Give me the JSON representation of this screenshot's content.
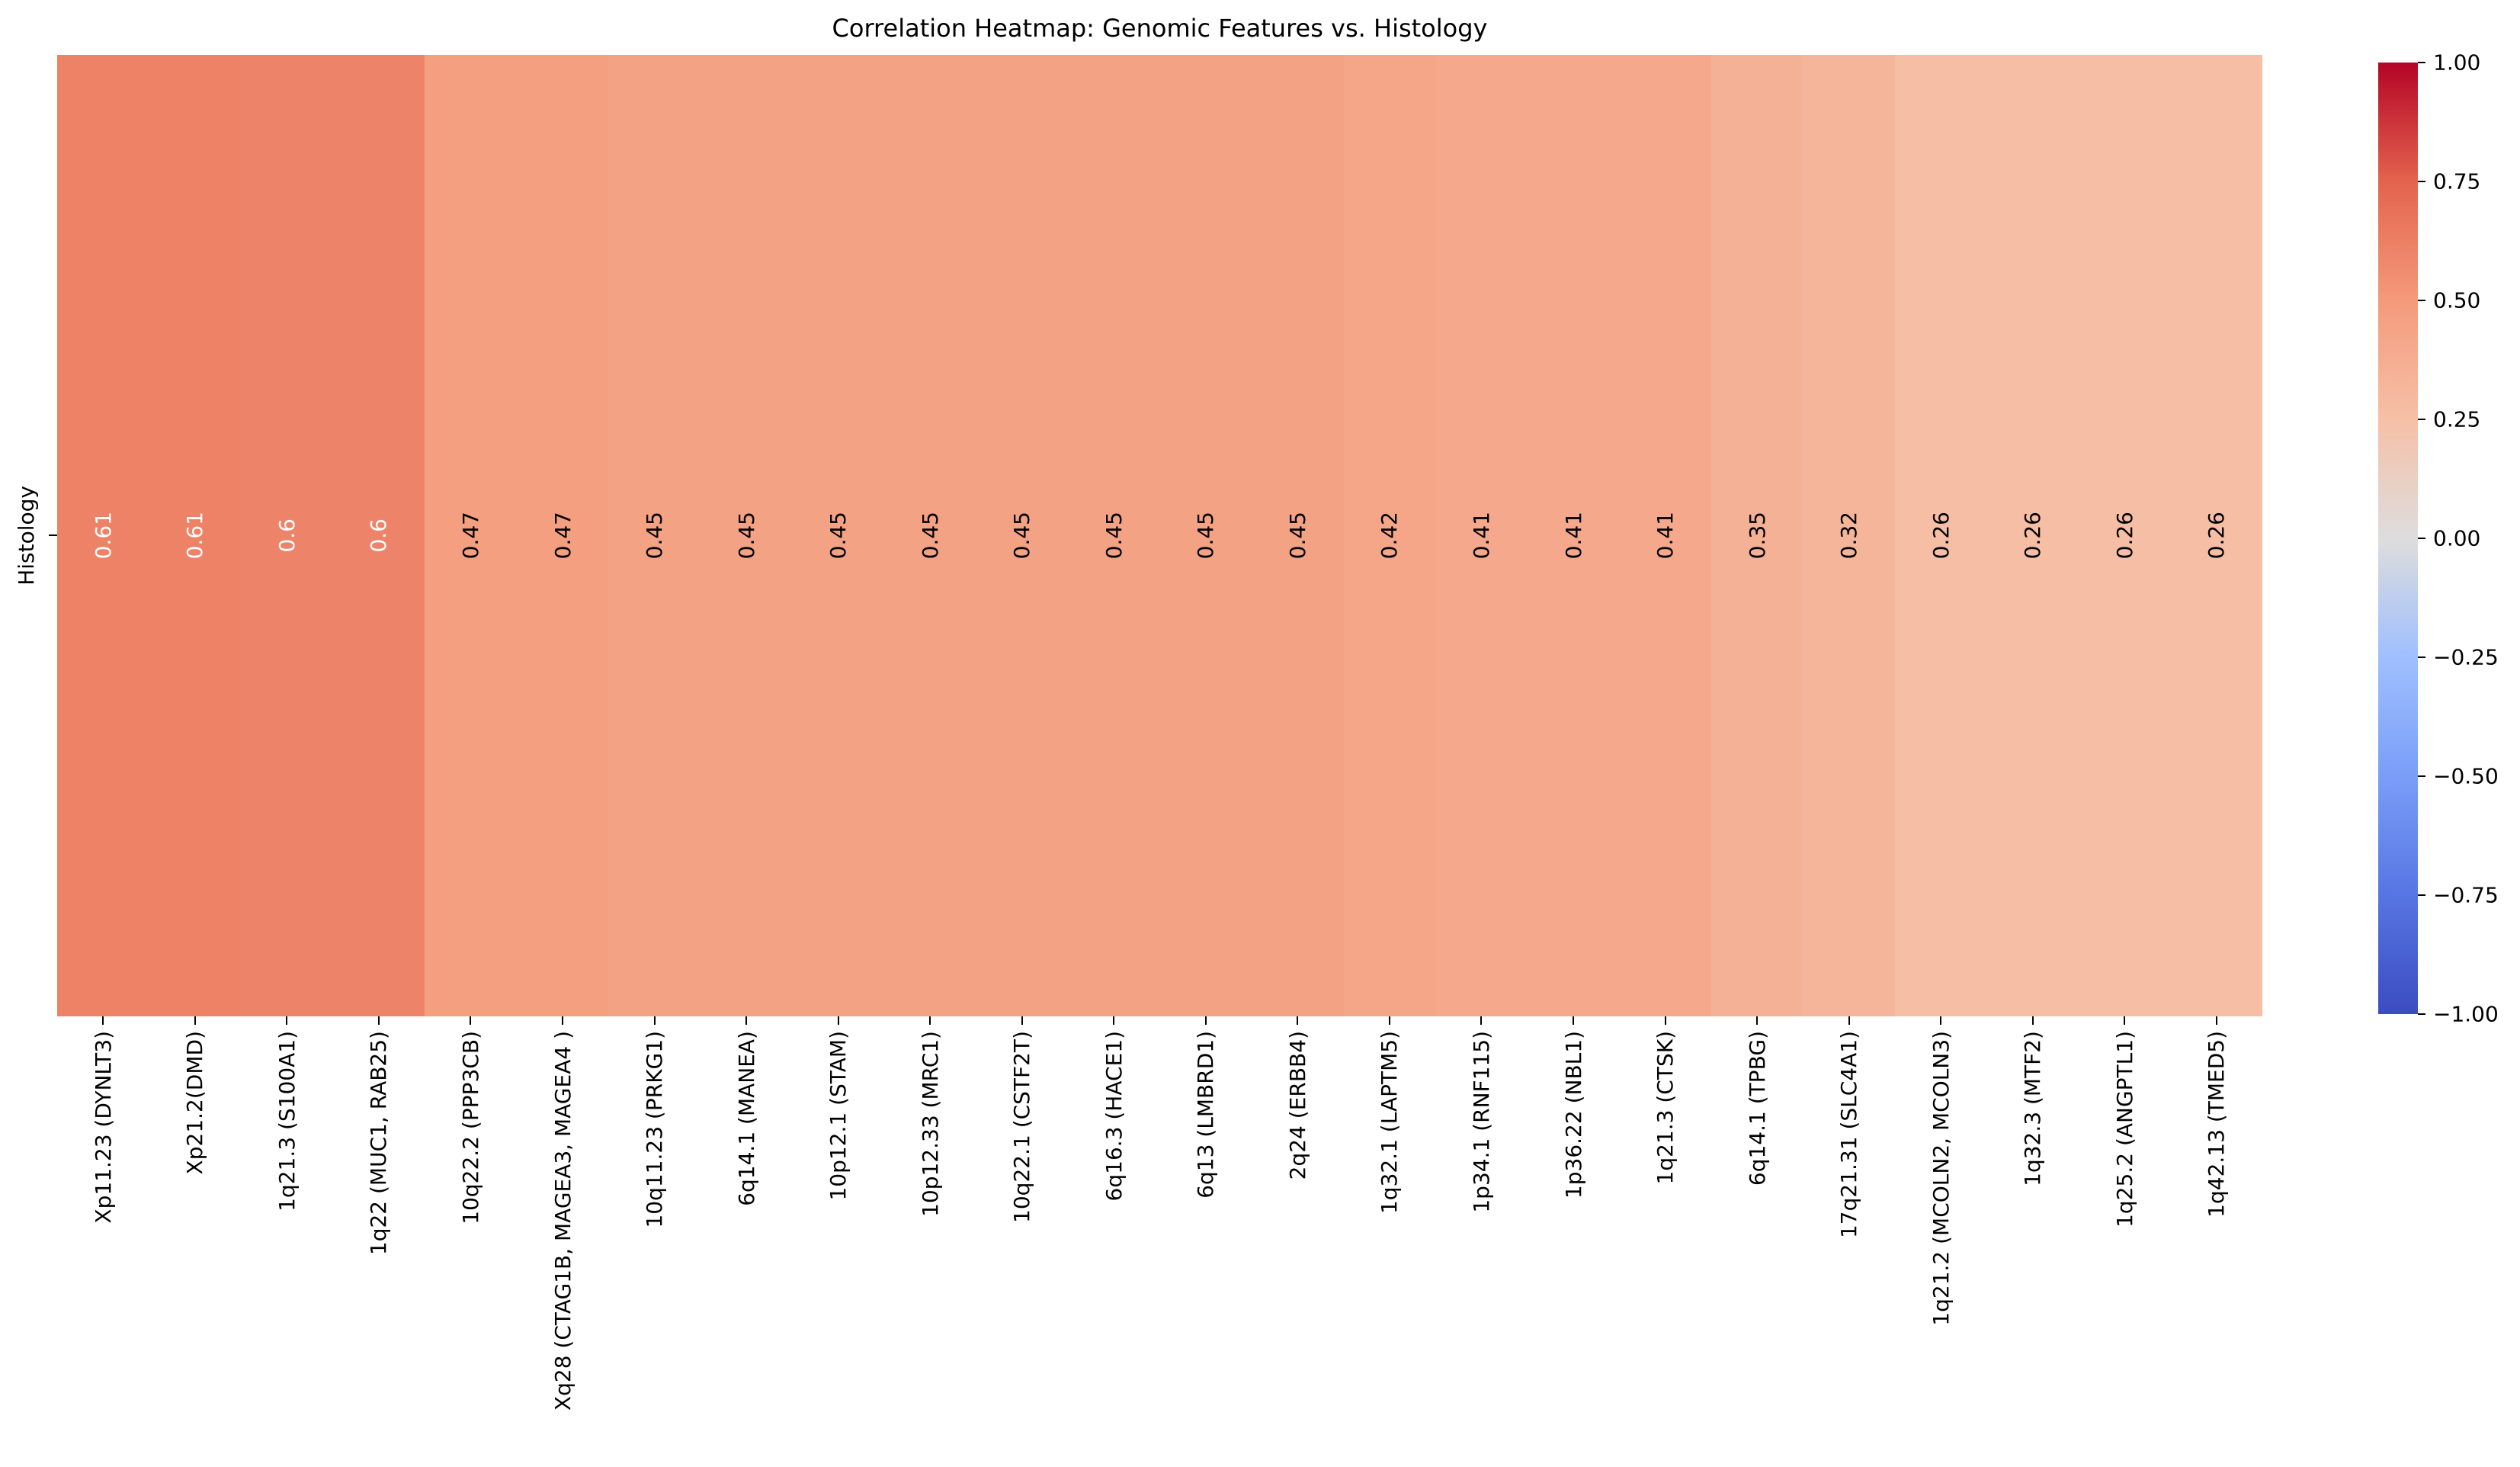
{
  "title": "Correlation Heatmap: Genomic Features vs. Histology",
  "ylabel": "Histology",
  "chart_data": {
    "type": "heatmap",
    "title": "Correlation Heatmap: Genomic Features vs. Histology",
    "rows": [
      "Histology"
    ],
    "columns": [
      "Xp11.23 (DYNLT3)",
      "Xp21.2(DMD)",
      "1q21.3 (S100A1)",
      "1q22 (MUC1, RAB25)",
      "10q22.2 (PPP3CB)",
      "Xq28 (CTAG1B, MAGEA3, MAGEA4 )",
      "10q11.23 (PRKG1)",
      "6q14.1 (MANEA)",
      "10p12.1 (STAM)",
      "10p12.33 (MRC1)",
      "10q22.1 (CSTF2T)",
      "6q16.3 (HACE1)",
      "6q13 (LMBRD1)",
      "2q24 (ERBB4)",
      "1q32.1 (LAPTM5)",
      "1p34.1 (RNF115)",
      "1p36.22 (NBL1)",
      "1q21.3 (CTSK)",
      "6q14.1 (TPBG)",
      "17q21.31 (SLC4A1)",
      "1q21.2 (MCOLN2, MCOLN3)",
      "1q32.3 (MTF2)",
      "1q25.2 (ANGPTL1)",
      "1q42.13 (TMED5)"
    ],
    "values": [
      [
        0.61,
        0.61,
        0.6,
        0.6,
        0.47,
        0.47,
        0.45,
        0.45,
        0.45,
        0.45,
        0.45,
        0.45,
        0.45,
        0.45,
        0.42,
        0.41,
        0.41,
        0.41,
        0.35,
        0.32,
        0.26,
        0.26,
        0.26,
        0.26
      ]
    ],
    "annotations": [
      [
        "0.61",
        "0.61",
        "0.6",
        "0.6",
        "0.47",
        "0.47",
        "0.45",
        "0.45",
        "0.45",
        "0.45",
        "0.45",
        "0.45",
        "0.45",
        "0.45",
        "0.42",
        "0.41",
        "0.41",
        "0.41",
        "0.35",
        "0.32",
        "0.26",
        "0.26",
        "0.26",
        "0.26"
      ]
    ],
    "colormap": "coolwarm",
    "vmin": -1,
    "vmax": 1,
    "colorbar_ticks": [
      "1.00",
      "0.75",
      "0.50",
      "0.25",
      "0.00",
      "−0.25",
      "−0.50",
      "−0.75",
      "−1.00"
    ],
    "legend_position": "right",
    "grid": false
  }
}
